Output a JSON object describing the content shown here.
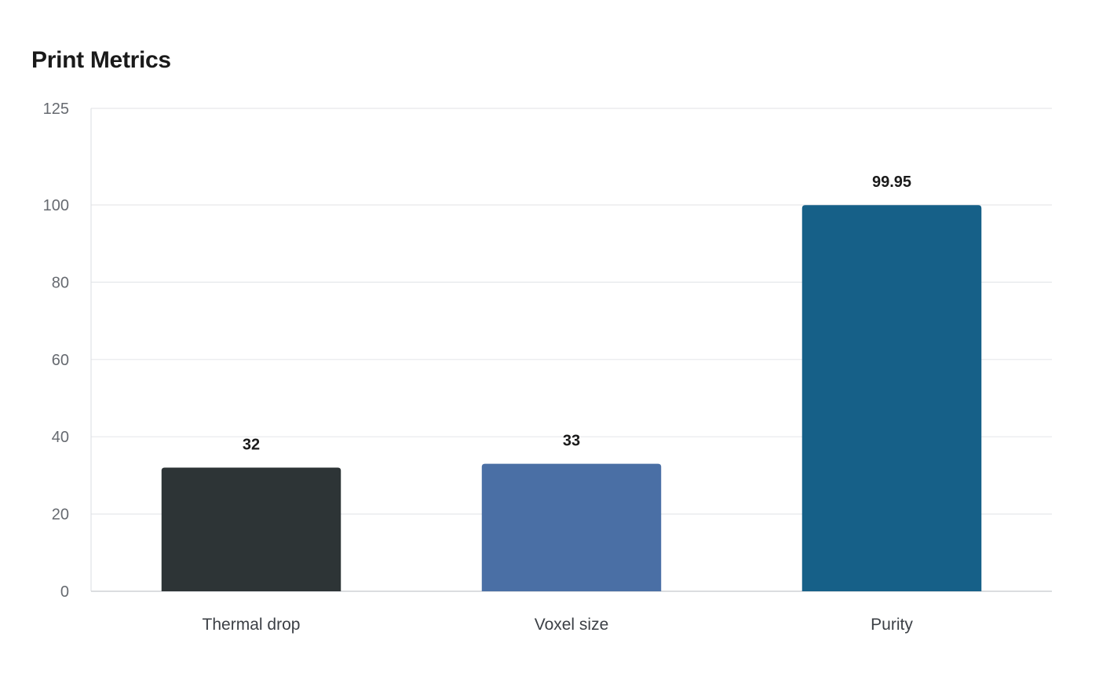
{
  "chart_data": {
    "type": "bar",
    "title": "Print Metrics",
    "xlabel": "",
    "ylabel": "",
    "categories": [
      "Thermal drop",
      "Voxel size",
      "Purity"
    ],
    "values": [
      32,
      33,
      99.95
    ],
    "value_labels": [
      "32",
      "33",
      "99.95"
    ],
    "colors": [
      "#2d3436",
      "#4a6fa5",
      "#166088"
    ],
    "ylim": [
      0,
      125
    ],
    "yticks": [
      0,
      20,
      40,
      60,
      80,
      100,
      125
    ],
    "grid": true,
    "legend": "none"
  }
}
